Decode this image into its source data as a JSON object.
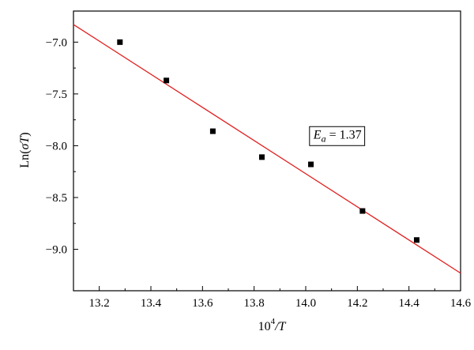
{
  "chart_data": {
    "type": "scatter",
    "title": "",
    "xlabel": {
      "base": "10",
      "sup": "4",
      "rest": "/T"
    },
    "ylabel": {
      "prefix": "Ln(",
      "sigma": "σ",
      "italic": "T",
      "suffix": ")"
    },
    "xlim": [
      13.1,
      14.6
    ],
    "ylim": [
      -9.4,
      -6.7
    ],
    "x_ticks": [
      13.2,
      13.4,
      13.6,
      13.8,
      14.0,
      14.2,
      14.4,
      14.6
    ],
    "x_tick_labels": [
      "13.2",
      "13.4",
      "13.6",
      "13.8",
      "14.0",
      "14.2",
      "14.4",
      "14.6"
    ],
    "y_ticks": [
      -7.0,
      -7.5,
      -8.0,
      -8.5,
      -9.0
    ],
    "y_tick_labels": [
      "−7.0",
      "−7.5",
      "−8.0",
      "−8.5",
      "−9.0"
    ],
    "grid": false,
    "series": [
      {
        "marker": "square",
        "color": "#000000",
        "x": [
          13.28,
          13.46,
          13.64,
          13.83,
          14.02,
          14.22,
          14.43
        ],
        "y": [
          -7.0,
          -7.37,
          -7.86,
          -8.11,
          -8.18,
          -8.63,
          -8.91
        ]
      }
    ],
    "fit_line": {
      "color": "#e02020",
      "x": [
        13.1,
        14.6
      ],
      "y": [
        -6.83,
        -9.23
      ]
    },
    "annotation": {
      "symbol": "E",
      "subscript": "a",
      "value_text": " = 1.37",
      "x": 14.03,
      "y": -7.93
    }
  }
}
